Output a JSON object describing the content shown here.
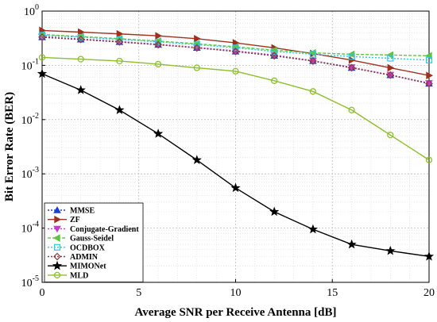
{
  "chart_data": {
    "type": "line",
    "title": "",
    "xlabel": "Average SNR per Receive Antenna [dB]",
    "ylabel": "Bit Error Rate (BER)",
    "xlim": [
      0,
      20
    ],
    "ylim": [
      1e-05,
      1
    ],
    "yscale": "log",
    "grid": true,
    "legend_position": "bottom-left",
    "x_ticks": [
      0,
      5,
      10,
      15,
      20
    ],
    "y_ticks": [
      {
        "value": 1,
        "mantissa": "10",
        "exponent": "0"
      },
      {
        "value": 0.1,
        "mantissa": "10",
        "exponent": "-1"
      },
      {
        "value": 0.01,
        "mantissa": "10",
        "exponent": "-2"
      },
      {
        "value": 0.001,
        "mantissa": "10",
        "exponent": "-3"
      },
      {
        "value": 0.0001,
        "mantissa": "10",
        "exponent": "-4"
      },
      {
        "value": 1e-05,
        "mantissa": "10",
        "exponent": "-5"
      }
    ],
    "x": [
      0,
      2,
      4,
      6,
      8,
      10,
      12,
      14,
      16,
      18,
      20
    ],
    "series": [
      {
        "name": "MMSE",
        "color": "#1f3fd1",
        "marker": "triangle-up",
        "dash": "2,2",
        "values": [
          0.33,
          0.3,
          0.27,
          0.24,
          0.21,
          0.18,
          0.15,
          0.12,
          0.09,
          0.066,
          0.046
        ]
      },
      {
        "name": "ZF",
        "color": "#a0301e",
        "marker": "triangle-right",
        "dash": "",
        "values": [
          0.44,
          0.41,
          0.38,
          0.35,
          0.31,
          0.26,
          0.21,
          0.165,
          0.125,
          0.09,
          0.065
        ]
      },
      {
        "name": "Conjugate-Gradient",
        "color": "#c040c8",
        "marker": "triangle-down",
        "dash": "2,2",
        "values": [
          0.34,
          0.305,
          0.275,
          0.245,
          0.215,
          0.185,
          0.155,
          0.122,
          0.092,
          0.067,
          0.047
        ]
      },
      {
        "name": "Gauss-Seidel",
        "color": "#5ec43c",
        "marker": "triangle-left",
        "dash": "4,2",
        "values": [
          0.37,
          0.34,
          0.31,
          0.28,
          0.25,
          0.22,
          0.19,
          0.17,
          0.16,
          0.155,
          0.15
        ]
      },
      {
        "name": "OCDBOX",
        "color": "#2ec8e8",
        "marker": "square",
        "dash": "2,2",
        "values": [
          0.36,
          0.33,
          0.3,
          0.27,
          0.24,
          0.21,
          0.18,
          0.16,
          0.145,
          0.135,
          0.125
        ]
      },
      {
        "name": "ADMIN",
        "color": "#8b3a3a",
        "marker": "diamond",
        "dash": "2,2",
        "values": [
          0.33,
          0.3,
          0.27,
          0.24,
          0.21,
          0.18,
          0.15,
          0.12,
          0.09,
          0.066,
          0.046
        ]
      },
      {
        "name": "MIMONet",
        "color": "#000000",
        "marker": "star",
        "dash": "",
        "values": [
          0.07,
          0.035,
          0.015,
          0.0055,
          0.0018,
          0.00055,
          0.0002,
          9.5e-05,
          5e-05,
          3.8e-05,
          3e-05
        ]
      },
      {
        "name": "MLD",
        "color": "#8cbf2a",
        "marker": "circle",
        "dash": "",
        "values": [
          0.14,
          0.13,
          0.12,
          0.105,
          0.09,
          0.078,
          0.052,
          0.033,
          0.015,
          0.0052,
          0.0018
        ]
      }
    ]
  }
}
